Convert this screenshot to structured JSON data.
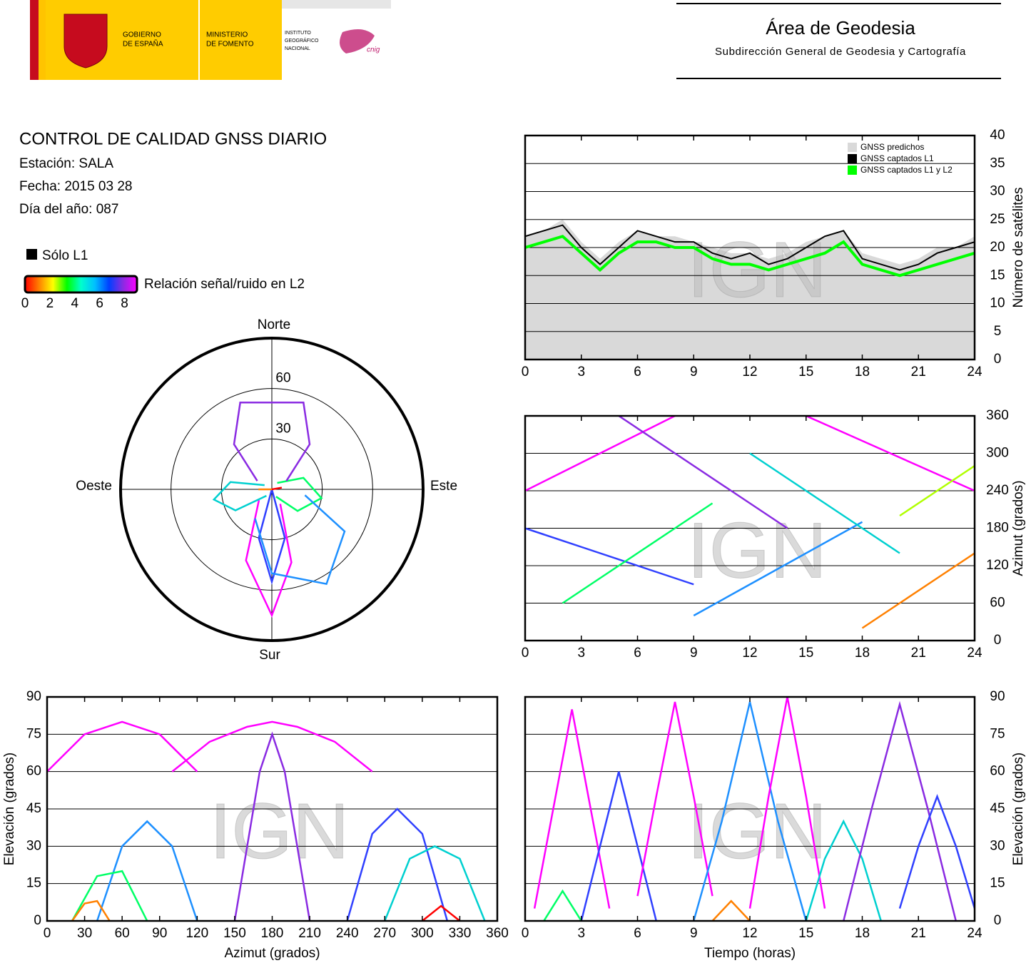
{
  "header": {
    "gov1": "GOBIERNO",
    "gov2": "DE ESPAÑA",
    "min1": "MINISTERIO",
    "min2": "DE FOMENTO",
    "ign1": "INSTITUTO",
    "ign2": "GEOGRÁFICO",
    "ign3": "NACIONAL",
    "cnig": "cnig",
    "title": "Área de Geodesia",
    "subtitle": "Subdirección General de Geodesia y Cartografía"
  },
  "report": {
    "title": "CONTROL DE CALIDAD GNSS DIARIO",
    "station": "Estación: SALA",
    "date": "Fecha: 2015 03 28",
    "doy": "Día del año: 087"
  },
  "legend": {
    "l1_only": "Sólo L1",
    "snr_label": "Relación señal/ruido en L2",
    "snr_ticks": [
      0,
      2,
      4,
      6,
      8
    ],
    "snr_range": [
      0,
      9
    ],
    "colors": [
      "#ff0000",
      "#ff8000",
      "#ffff00",
      "#00ff00",
      "#00ffcc",
      "#00bfff",
      "#0040ff",
      "#8a2be2",
      "#ff00ff"
    ]
  },
  "watermark": "IGN",
  "chart_data": [
    {
      "type": "polar",
      "north": "Norte",
      "south": "Sur",
      "west": "Oeste",
      "east": "Este",
      "rlim": [
        90,
        0
      ],
      "rticks": [
        30,
        60
      ],
      "series": [
        {
          "color": "#ff00ff",
          "az": [
            150,
            165,
            180,
            200,
            230
          ],
          "el": [
            10,
            45,
            75,
            45,
            10
          ]
        },
        {
          "color": "#3040ff",
          "az": [
            200,
            195,
            180,
            165,
            160
          ],
          "el": [
            0,
            30,
            55,
            30,
            0
          ]
        },
        {
          "color": "#00d0d0",
          "az": [
            300,
            280,
            260,
            240,
            220
          ],
          "el": [
            5,
            25,
            35,
            25,
            5
          ]
        },
        {
          "color": "#00ff66",
          "az": [
            40,
            70,
            100,
            130,
            150
          ],
          "el": [
            5,
            20,
            30,
            20,
            5
          ]
        },
        {
          "color": "#8a2be2",
          "az": [
            300,
            320,
            340,
            20,
            40,
            60
          ],
          "el": [
            10,
            35,
            55,
            55,
            35,
            10
          ]
        },
        {
          "color": "#ff8000",
          "az": [
            280,
            270,
            260
          ],
          "el": [
            0,
            8,
            0
          ]
        },
        {
          "color": "#1e90ff",
          "az": [
            100,
            120,
            150,
            180,
            210
          ],
          "el": [
            20,
            50,
            65,
            50,
            20
          ]
        },
        {
          "color": "#ff0000",
          "az": [
            60,
            80,
            100
          ],
          "el": [
            0,
            6,
            0
          ]
        }
      ]
    },
    {
      "type": "line",
      "ylabel": "Número de satélites",
      "xlim": [
        0,
        24
      ],
      "xticks": [
        0,
        3,
        6,
        9,
        12,
        15,
        18,
        21,
        24
      ],
      "ylim": [
        0,
        40
      ],
      "yticks": [
        0,
        5,
        10,
        15,
        20,
        25,
        30,
        35,
        40
      ],
      "grid": true,
      "x": [
        0,
        1,
        2,
        3,
        4,
        5,
        6,
        7,
        8,
        9,
        10,
        11,
        12,
        13,
        14,
        15,
        16,
        17,
        18,
        19,
        20,
        21,
        22,
        23,
        24
      ],
      "series": [
        {
          "name": "GNSS predichos",
          "color": "#d9d9d9",
          "style": "area",
          "values": [
            22,
            23,
            25,
            21,
            18,
            21,
            23,
            22,
            22,
            21,
            20,
            19,
            19,
            18,
            19,
            21,
            22,
            23,
            19,
            18,
            17,
            18,
            20,
            20,
            22
          ]
        },
        {
          "name": "GNSS captados L1",
          "color": "#000000",
          "style": "line",
          "values": [
            22,
            23,
            24,
            20,
            17,
            20,
            23,
            22,
            21,
            21,
            19,
            18,
            19,
            17,
            18,
            20,
            22,
            23,
            18,
            17,
            16,
            17,
            19,
            20,
            21
          ]
        },
        {
          "name": "GNSS captados L1 y L2",
          "color": "#00ff00",
          "style": "line",
          "values": [
            20,
            21,
            22,
            19,
            16,
            19,
            21,
            21,
            20,
            20,
            18,
            17,
            17,
            16,
            17,
            18,
            19,
            21,
            17,
            16,
            15,
            16,
            17,
            18,
            19
          ]
        }
      ]
    },
    {
      "type": "scatter",
      "ylabel": "Azimut (grados)",
      "xlim": [
        0,
        24
      ],
      "xticks": [
        0,
        3,
        6,
        9,
        12,
        15,
        18,
        21,
        24
      ],
      "ylim": [
        0,
        360
      ],
      "yticks": [
        0,
        60,
        120,
        180,
        240,
        300,
        360
      ],
      "grid": true,
      "series": [
        {
          "color": "#ff00ff",
          "x": [
            0,
            2,
            4,
            6,
            8
          ],
          "y": [
            240,
            270,
            300,
            330,
            360
          ]
        },
        {
          "color": "#3040ff",
          "x": [
            0,
            3,
            6,
            9
          ],
          "y": [
            180,
            150,
            120,
            90
          ]
        },
        {
          "color": "#00ff66",
          "x": [
            2,
            4,
            6,
            8,
            10
          ],
          "y": [
            60,
            100,
            140,
            180,
            220
          ]
        },
        {
          "color": "#8a2be2",
          "x": [
            5,
            8,
            11,
            14
          ],
          "y": [
            360,
            300,
            240,
            180
          ]
        },
        {
          "color": "#1e90ff",
          "x": [
            9,
            12,
            15,
            18
          ],
          "y": [
            40,
            90,
            140,
            190
          ]
        },
        {
          "color": "#00d0d0",
          "x": [
            12,
            14,
            16,
            18,
            20
          ],
          "y": [
            300,
            260,
            220,
            180,
            140
          ]
        },
        {
          "color": "#ff00ff",
          "x": [
            15,
            18,
            21,
            24
          ],
          "y": [
            360,
            320,
            280,
            240
          ]
        },
        {
          "color": "#ff8000",
          "x": [
            18,
            20,
            22,
            24
          ],
          "y": [
            20,
            60,
            100,
            140
          ]
        },
        {
          "color": "#b0ff00",
          "x": [
            20,
            22,
            24
          ],
          "y": [
            200,
            240,
            280
          ]
        }
      ]
    },
    {
      "type": "scatter",
      "xlabel": "Azimut (grados)",
      "ylabel": "Elevación (grados)",
      "xlim": [
        0,
        360
      ],
      "xticks": [
        0,
        30,
        60,
        90,
        120,
        150,
        180,
        210,
        240,
        270,
        300,
        330,
        360
      ],
      "ylim": [
        0,
        90
      ],
      "yticks": [
        0,
        15,
        30,
        45,
        60,
        75,
        90
      ],
      "grid": true,
      "series": [
        {
          "color": "#ff00ff",
          "x": [
            100,
            130,
            160,
            180,
            200,
            230,
            260
          ],
          "y": [
            60,
            72,
            78,
            80,
            78,
            72,
            60
          ]
        },
        {
          "color": "#8a2be2",
          "x": [
            150,
            160,
            170,
            180,
            190,
            200,
            210
          ],
          "y": [
            0,
            30,
            60,
            75,
            60,
            30,
            0
          ]
        },
        {
          "color": "#3040ff",
          "x": [
            240,
            260,
            280,
            300,
            320
          ],
          "y": [
            0,
            35,
            45,
            35,
            0
          ]
        },
        {
          "color": "#1e90ff",
          "x": [
            40,
            60,
            80,
            100,
            120
          ],
          "y": [
            0,
            30,
            40,
            30,
            0
          ]
        },
        {
          "color": "#00d0d0",
          "x": [
            270,
            290,
            310,
            330,
            350
          ],
          "y": [
            0,
            25,
            30,
            25,
            0
          ]
        },
        {
          "color": "#00ff66",
          "x": [
            20,
            40,
            60,
            80
          ],
          "y": [
            0,
            18,
            20,
            0
          ]
        },
        {
          "color": "#ff8000",
          "x": [
            20,
            30,
            40,
            50
          ],
          "y": [
            0,
            7,
            8,
            0
          ]
        },
        {
          "color": "#ff00ff",
          "x": [
            0,
            30,
            60,
            90,
            120
          ],
          "y": [
            60,
            75,
            80,
            75,
            60
          ]
        },
        {
          "color": "#ff0000",
          "x": [
            300,
            315,
            330
          ],
          "y": [
            0,
            6,
            0
          ]
        }
      ]
    },
    {
      "type": "scatter",
      "xlabel": "Tiempo (horas)",
      "ylabel": "Elevación (grados)",
      "xlim": [
        0,
        24
      ],
      "xticks": [
        0,
        3,
        6,
        9,
        12,
        15,
        18,
        21,
        24
      ],
      "ylim": [
        0,
        90
      ],
      "yticks": [
        0,
        15,
        30,
        45,
        60,
        75,
        90
      ],
      "grid": true,
      "series": [
        {
          "color": "#ff00ff",
          "x": [
            0.5,
            1.5,
            2.5,
            3.5,
            4.5
          ],
          "y": [
            5,
            45,
            85,
            45,
            5
          ]
        },
        {
          "color": "#3040ff",
          "x": [
            3,
            4,
            5,
            6,
            7
          ],
          "y": [
            0,
            30,
            60,
            30,
            0
          ]
        },
        {
          "color": "#ff00ff",
          "x": [
            6,
            7,
            8,
            9,
            10
          ],
          "y": [
            10,
            50,
            88,
            50,
            10
          ]
        },
        {
          "color": "#1e90ff",
          "x": [
            9,
            10.5,
            12,
            13.5,
            15
          ],
          "y": [
            0,
            40,
            88,
            40,
            0
          ]
        },
        {
          "color": "#ff00ff",
          "x": [
            12,
            13,
            14,
            15,
            16
          ],
          "y": [
            5,
            50,
            90,
            50,
            5
          ]
        },
        {
          "color": "#00d0d0",
          "x": [
            15,
            16,
            17,
            18,
            19
          ],
          "y": [
            0,
            25,
            40,
            25,
            0
          ]
        },
        {
          "color": "#8a2be2",
          "x": [
            17,
            18.5,
            20,
            21.5,
            23
          ],
          "y": [
            0,
            45,
            87,
            45,
            0
          ]
        },
        {
          "color": "#3040ff",
          "x": [
            20,
            21,
            22,
            23,
            24
          ],
          "y": [
            5,
            30,
            50,
            30,
            5
          ]
        },
        {
          "color": "#00ff66",
          "x": [
            1,
            2,
            3
          ],
          "y": [
            0,
            12,
            0
          ]
        },
        {
          "color": "#ff8000",
          "x": [
            10,
            11,
            12
          ],
          "y": [
            0,
            8,
            0
          ]
        }
      ]
    }
  ]
}
